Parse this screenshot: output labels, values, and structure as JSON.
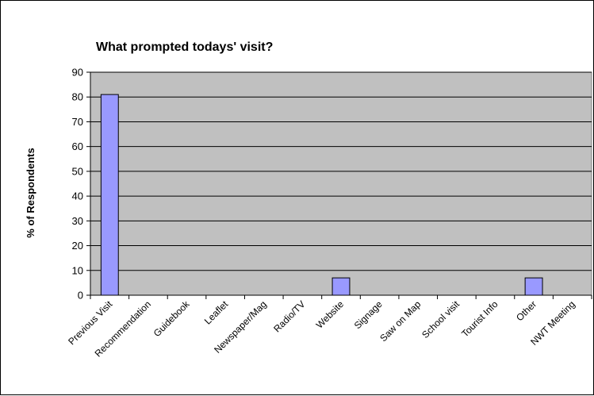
{
  "chart_data": {
    "type": "bar",
    "title": "What prompted todays' visit?",
    "xlabel": "",
    "ylabel": "% of Respondents",
    "ylim": [
      0,
      90
    ],
    "y_ticks": [
      0,
      10,
      20,
      30,
      40,
      50,
      60,
      70,
      80,
      90
    ],
    "grid": true,
    "legend": "none",
    "categories": [
      "Previous Visit",
      "Recommendation",
      "Guidebook",
      "Leaflet",
      "Newspaper/Mag",
      "Radio/TV",
      "Website",
      "Signage",
      "Saw on Map",
      "School visit",
      "Tourist Info",
      "Other",
      "NWT Meeting"
    ],
    "values": [
      81,
      0,
      0,
      0,
      0,
      0,
      7,
      0,
      0,
      0,
      0,
      7,
      0
    ],
    "colors": {
      "plot_background": "#c0c0c0",
      "bar_fill": "#9999ff",
      "bar_stroke": "#000000",
      "gridline": "#000000"
    }
  }
}
